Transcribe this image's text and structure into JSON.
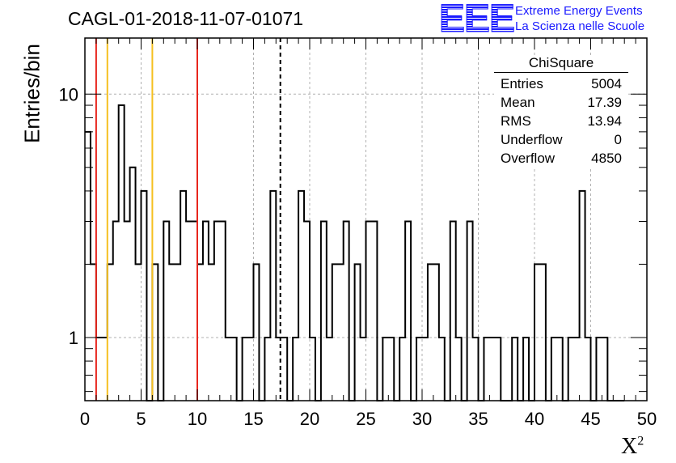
{
  "title": "CAGL-01-2018-11-07-01071",
  "logo": {
    "mark": "EEE",
    "line1": "Extreme Energy Events",
    "line2": "La Scienza nelle Scuole",
    "color": "#1a1aff"
  },
  "stats": {
    "title": "ChiSquare",
    "rows": [
      {
        "label": "Entries",
        "value": "5004"
      },
      {
        "label": "Mean",
        "value": "17.39"
      },
      {
        "label": "RMS",
        "value": "13.94"
      },
      {
        "label": "Underflow",
        "value": "0"
      },
      {
        "label": "Overflow",
        "value": "4850"
      }
    ]
  },
  "chart_data": {
    "type": "histogram",
    "title": "CAGL-01-2018-11-07-01071",
    "xlabel": "X²",
    "ylabel": "Entries/bin",
    "xlim": [
      0,
      50
    ],
    "ylim": [
      0.55,
      17
    ],
    "yscale": "log",
    "grid": true,
    "bin_width": 0.5,
    "x_ticks": [
      0,
      5,
      10,
      15,
      20,
      25,
      30,
      35,
      40,
      45,
      50
    ],
    "x_tick_labels": [
      "0",
      "5",
      "10",
      "15",
      "20",
      "25",
      "30",
      "35",
      "40",
      "45",
      "50"
    ],
    "y_ticks": [
      1,
      10
    ],
    "y_tick_labels": [
      "1",
      "10"
    ],
    "counts": [
      7,
      2,
      1,
      1,
      2,
      3,
      9,
      3,
      5,
      2,
      4,
      0,
      2,
      0,
      3,
      2,
      2,
      4,
      3,
      3,
      2,
      3,
      2,
      3,
      3,
      1,
      1,
      0,
      1,
      1,
      2,
      0,
      1,
      4,
      1,
      1,
      0,
      1,
      4,
      3,
      1,
      0,
      3,
      1,
      2,
      2,
      3,
      0,
      2,
      1,
      3,
      3,
      0,
      1,
      1,
      0,
      1,
      3,
      0,
      1,
      1,
      2,
      2,
      1,
      0,
      3,
      1,
      0,
      3,
      1,
      0,
      1,
      1,
      1,
      0,
      0,
      1,
      0,
      1,
      0,
      2,
      2,
      0,
      1,
      1,
      0,
      1,
      1,
      4,
      1,
      0,
      1,
      1,
      0,
      0,
      0
    ],
    "vertical_lines": [
      {
        "x": 1,
        "color": "#e8261d",
        "style": "solid"
      },
      {
        "x": 2,
        "color": "#f5c020",
        "style": "solid"
      },
      {
        "x": 6,
        "color": "#f5c020",
        "style": "solid"
      },
      {
        "x": 10,
        "color": "#e8261d",
        "style": "solid"
      },
      {
        "x": 17.39,
        "color": "#000000",
        "style": "dashed"
      }
    ]
  }
}
